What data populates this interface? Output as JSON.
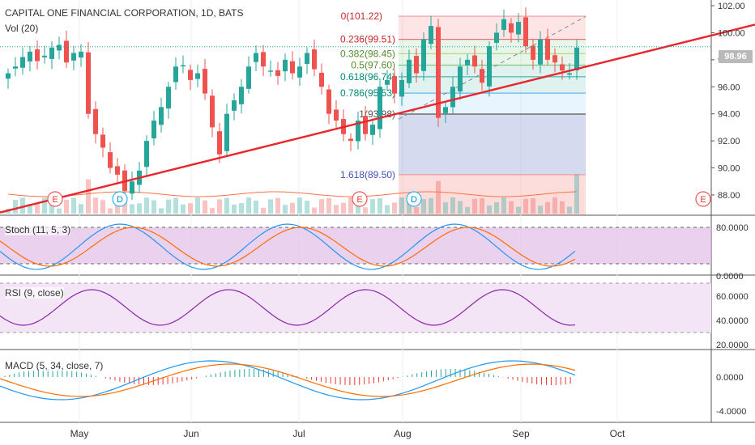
{
  "header": {
    "title": "CAPITAL ONE FINANCIAL CORPORATION, 1D, BATS",
    "volume_label": "Vol (20)"
  },
  "last_price": "98.96",
  "colors": {
    "up": "#26a69a",
    "down": "#ef5350",
    "trend": "#e8262c",
    "stoch_bg": "#e1bee7",
    "rsi_bg": "#f3e5f5",
    "macd_line": "#2196f3",
    "signal_line": "#ff6d00",
    "upper_band": "#ef9a9a",
    "lower_band": "#9fa8da"
  },
  "xaxis": {
    "months": [
      "May",
      "Jun",
      "Jul",
      "Aug",
      "Sep",
      "Oct"
    ]
  },
  "price_axis": {
    "ticks": [
      "102.00",
      "100.00",
      "98.00",
      "96.00",
      "94.00",
      "92.00",
      "90.00",
      "88.00"
    ]
  },
  "fib": {
    "levels": [
      "0(101.22)",
      "0.236(99.51)",
      "0.382(98.45)",
      "0.5(97.60)",
      "0.618(96.74)",
      "0.786(95.53)",
      "1(93.98)",
      "1.618(89.50)"
    ]
  },
  "event_markers": [
    "E",
    "D",
    "E",
    "D",
    "E"
  ],
  "panels": {
    "stoch": {
      "label": "Stoch (11, 5, 3)",
      "ticks": [
        "80.0000",
        "0.0000"
      ]
    },
    "rsi": {
      "label": "RSI (9, close)",
      "ticks": [
        "60.0000",
        "40.0000",
        "20.0000"
      ]
    },
    "macd": {
      "label": "MACD (5, 34, close, 7)",
      "ticks": [
        "0.0000",
        "-4.0000"
      ]
    }
  },
  "chart_data": {
    "type": "candlestick",
    "title": "CAPITAL ONE FINANCIAL CORPORATION, 1D, BATS",
    "ylim": [
      86.5,
      102.3
    ],
    "approx_close_path": [
      97.0,
      97.5,
      98.2,
      98.6,
      97.9,
      98.3,
      98.9,
      99.1,
      97.8,
      98.5,
      98.6,
      94.0,
      92.5,
      91.5,
      90.0,
      89.5,
      88.3,
      89.0,
      89.8,
      92.0,
      93.5,
      94.5,
      96.0,
      97.5,
      97.6,
      96.5,
      97.0,
      95.5,
      93.0,
      91.0,
      94.0,
      95.0,
      96.0,
      97.5,
      98.5,
      97.5,
      97.2,
      96.8,
      98.0,
      97.0,
      97.5,
      98.5,
      97.3,
      96.0,
      94.0,
      93.5,
      92.5,
      92.0,
      93.5,
      92.5,
      93.2,
      96.0,
      96.5,
      95.5,
      96.5,
      98.0,
      97.0,
      99.5,
      100.5,
      93.7,
      94.5,
      96.0,
      97.5,
      98.0,
      97.5,
      96.3,
      99.0,
      100.0,
      101.0,
      100.0,
      100.8,
      99.0,
      98.0,
      99.5,
      98.0,
      97.8,
      97.2,
      97.0,
      98.9
    ],
    "trendline": {
      "from": [
        "Apr",
        86.7
      ],
      "to": [
        "Oct",
        99.9
      ]
    }
  }
}
